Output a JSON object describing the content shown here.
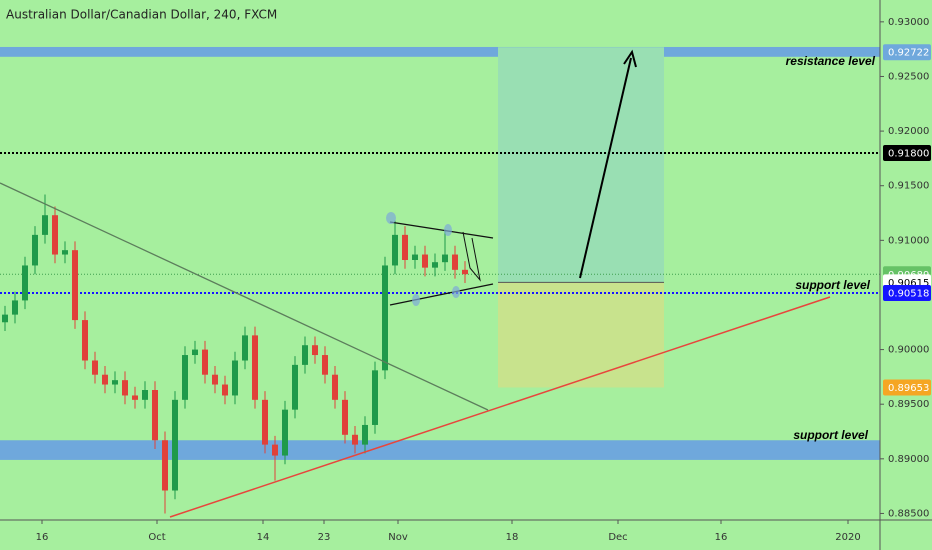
{
  "chart_data": {
    "type": "candlestick",
    "title": "Australian Dollar/Canadian Dollar, 240, FXCM",
    "up_color": "#1f9a4a",
    "down_color": "#e0413a",
    "candles": {
      "x": [
        1,
        3,
        5,
        7,
        9,
        11,
        13,
        15,
        17,
        19,
        21,
        23,
        25,
        27,
        29,
        31,
        33,
        35,
        37,
        39,
        41,
        43,
        45,
        47,
        49,
        51,
        53,
        55,
        57,
        59,
        61,
        63,
        65,
        67,
        69,
        71,
        73,
        75,
        77,
        79,
        81,
        83,
        85,
        87,
        89,
        91,
        93
      ],
      "open": [
        0.9025,
        0.9032,
        0.9045,
        0.9077,
        0.9105,
        0.9123,
        0.9087,
        0.9091,
        0.9027,
        0.899,
        0.8977,
        0.8968,
        0.8972,
        0.8958,
        0.8954,
        0.8963,
        0.8917,
        0.8871,
        0.8954,
        0.8995,
        0.9,
        0.8977,
        0.8968,
        0.8958,
        0.899,
        0.9013,
        0.8954,
        0.8913,
        0.8903,
        0.8945,
        0.8986,
        0.9004,
        0.8995,
        0.8977,
        0.8954,
        0.8922,
        0.8913,
        0.8931,
        0.8981,
        0.9077,
        0.9105,
        0.9082,
        0.9087,
        0.9075,
        0.908,
        0.9087,
        0.9073
      ],
      "high": [
        0.904,
        0.9053,
        0.9085,
        0.9113,
        0.9142,
        0.9131,
        0.9099,
        0.9099,
        0.9035,
        0.8998,
        0.8985,
        0.898,
        0.898,
        0.8966,
        0.8971,
        0.8971,
        0.8925,
        0.8962,
        0.9003,
        0.9008,
        0.9008,
        0.8985,
        0.8976,
        0.8998,
        0.9021,
        0.9021,
        0.8962,
        0.8921,
        0.8953,
        0.8994,
        0.9012,
        0.9012,
        0.9003,
        0.8985,
        0.8962,
        0.893,
        0.8939,
        0.8989,
        0.9085,
        0.9118,
        0.9113,
        0.9095,
        0.9095,
        0.9088,
        0.911,
        0.9095,
        0.9081
      ],
      "low": [
        0.9017,
        0.9024,
        0.9037,
        0.9069,
        0.9097,
        0.9079,
        0.9079,
        0.9019,
        0.8982,
        0.8969,
        0.896,
        0.896,
        0.895,
        0.8946,
        0.8946,
        0.8909,
        0.885,
        0.8863,
        0.8946,
        0.8987,
        0.8969,
        0.896,
        0.895,
        0.895,
        0.8982,
        0.8946,
        0.8905,
        0.888,
        0.8895,
        0.8937,
        0.8978,
        0.8987,
        0.8969,
        0.8946,
        0.8914,
        0.8905,
        0.8905,
        0.8923,
        0.8973,
        0.9069,
        0.9074,
        0.9074,
        0.9067,
        0.9067,
        0.9072,
        0.9065,
        0.9061
      ],
      "close": [
        0.9032,
        0.9045,
        0.9077,
        0.9105,
        0.9123,
        0.9087,
        0.9091,
        0.9027,
        0.899,
        0.8977,
        0.8968,
        0.8972,
        0.8958,
        0.8954,
        0.8963,
        0.8917,
        0.8871,
        0.8954,
        0.8995,
        0.9,
        0.8977,
        0.8968,
        0.8958,
        0.899,
        0.9013,
        0.8954,
        0.8913,
        0.8903,
        0.8945,
        0.8986,
        0.9004,
        0.8995,
        0.8977,
        0.8954,
        0.8922,
        0.8913,
        0.8931,
        0.8981,
        0.9077,
        0.9105,
        0.9082,
        0.9087,
        0.9075,
        0.908,
        0.9087,
        0.9073,
        0.9069
      ]
    },
    "xlim": [
      0,
      176
    ],
    "xticks": [
      {
        "value": 8.4,
        "label": "16"
      },
      {
        "value": 31.4,
        "label": "Oct"
      },
      {
        "value": 52.6,
        "label": "14"
      },
      {
        "value": 64.8,
        "label": "23"
      },
      {
        "value": 79.6,
        "label": "Nov"
      },
      {
        "value": 102.4,
        "label": "18"
      },
      {
        "value": 123.6,
        "label": "Dec"
      },
      {
        "value": 144.2,
        "label": "16"
      },
      {
        "value": 169.6,
        "label": "2020"
      }
    ],
    "ylim": [
      0.8844,
      0.932
    ],
    "yticks": [
      {
        "value": 0.93,
        "label": "0.93000"
      },
      {
        "value": 0.925,
        "label": "0.92500"
      },
      {
        "value": 0.92,
        "label": "0.92000"
      },
      {
        "value": 0.915,
        "label": "0.91500"
      },
      {
        "value": 0.91,
        "label": "0.91000"
      },
      {
        "value": 0.9,
        "label": "0.90000"
      },
      {
        "value": 0.895,
        "label": "0.89500"
      },
      {
        "value": 0.89,
        "label": "0.89000"
      },
      {
        "value": 0.885,
        "label": "0.88500"
      }
    ],
    "zones": [
      {
        "from": 0.9268,
        "to": 0.9277,
        "color": "#6fa8dc"
      },
      {
        "from": 0.8899,
        "to": 0.8917,
        "color": "#6fa8dc"
      }
    ],
    "position": {
      "target": 0.92722,
      "entry": 0.90615,
      "stop": 0.89653,
      "profit_color": "#99dfb3",
      "loss_color": "#c8e38d"
    },
    "price_labels": [
      {
        "value": 0.92722,
        "label": "0.92722",
        "bg": "#6fa8dc",
        "fg": "#ffffff"
      },
      {
        "value": 0.918,
        "label": "0.91800",
        "bg": "#000000",
        "fg": "#ffffff",
        "line": "#000000"
      },
      {
        "value": 0.90689,
        "label": "0.90689",
        "bg": "#66c266",
        "fg": "#ffffff",
        "line": "#3f9f4f"
      },
      {
        "value": 0.90615,
        "label": "0.90615",
        "bg": "#ffffff",
        "fg": "#000000"
      },
      {
        "value": 0.90518,
        "label": "0.90518",
        "bg": "#1515ff",
        "fg": "#ffffff",
        "line": "#1515ff"
      },
      {
        "value": 0.89653,
        "label": "0.89653",
        "bg": "#f5a623",
        "fg": "#ffffff"
      }
    ],
    "annotations": [
      "resistance level",
      "support level",
      "support level"
    ]
  }
}
